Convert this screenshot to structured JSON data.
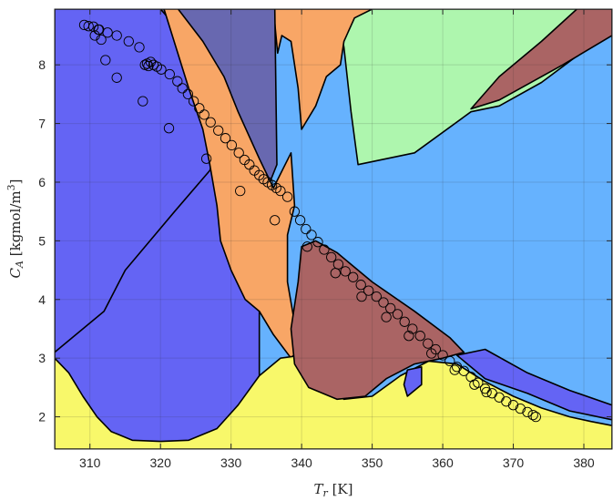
{
  "chart_data": {
    "type": "scatter",
    "title": "",
    "xlabel": {
      "symbol": "T",
      "subscript": "r",
      "unit": "[K]"
    },
    "ylabel": {
      "symbol": "C",
      "subscript": "A",
      "unit": "[kgmol/m",
      "unit_sup": "3",
      "unit_end": "]"
    },
    "xlim": [
      305,
      384
    ],
    "ylim": [
      1.45,
      8.95
    ],
    "xticks": [
      310,
      320,
      330,
      340,
      350,
      360,
      370,
      380
    ],
    "yticks": [
      2,
      3,
      4,
      5,
      6,
      7,
      8
    ],
    "grid": true,
    "colors": {
      "blue_region": "#6464f4",
      "slate_region": "#6868b0",
      "orange_region": "#f8a666",
      "green_region": "#aef6ae",
      "lightblue_region": "#66b2fe",
      "maroon_region": "#aa6464",
      "yellow_region": "#f8f86a",
      "marker_edge": "#000000"
    },
    "regions": [
      {
        "name": "blue",
        "color": "blue_region",
        "points": [
          [
            305,
            1.45
          ],
          [
            305,
            8.95
          ],
          [
            336.5,
            8.95
          ],
          [
            336.5,
            1.45
          ]
        ]
      },
      {
        "name": "lightblue",
        "color": "lightblue_region",
        "points": [
          [
            334,
            8.95
          ],
          [
            384,
            8.95
          ],
          [
            384,
            1.45
          ],
          [
            334,
            1.45
          ]
        ]
      },
      {
        "name": "green",
        "color": "green_region",
        "points": [
          [
            362,
            8.95
          ],
          [
            384,
            8.95
          ],
          [
            384,
            8.6
          ],
          [
            374,
            7.7
          ],
          [
            368,
            7.3
          ],
          [
            364,
            7.2
          ],
          [
            356,
            6.5
          ],
          [
            348,
            6.3
          ],
          [
            347,
            7.2
          ],
          [
            346,
            8.3
          ],
          [
            345,
            8.95
          ]
        ]
      },
      {
        "name": "maroon_top",
        "color": "maroon_region",
        "points": [
          [
            384,
            8.95
          ],
          [
            384,
            8.5
          ],
          [
            377,
            8.0
          ],
          [
            368,
            7.4
          ],
          [
            364,
            7.25
          ],
          [
            368,
            7.8
          ],
          [
            374,
            8.4
          ],
          [
            379,
            8.95
          ]
        ]
      },
      {
        "name": "orange_top",
        "color": "orange_region",
        "points": [
          [
            336,
            8.95
          ],
          [
            350,
            8.95
          ],
          [
            347.5,
            8.8
          ],
          [
            346,
            8.4
          ],
          [
            345.5,
            8.0
          ],
          [
            343.5,
            7.8
          ],
          [
            342,
            7.3
          ],
          [
            340,
            6.9
          ],
          [
            339.5,
            7.6
          ],
          [
            338.5,
            8.4
          ],
          [
            337.2,
            8.5
          ],
          [
            336.6,
            8.2
          ]
        ]
      },
      {
        "name": "slate",
        "color": "slate_region",
        "points": [
          [
            320,
            8.95
          ],
          [
            336.2,
            8.95
          ],
          [
            336.5,
            6.3
          ],
          [
            335.5,
            6.0
          ],
          [
            333,
            6.5
          ],
          [
            330,
            7.3
          ],
          [
            327,
            7.9
          ],
          [
            324,
            8.4
          ]
        ]
      },
      {
        "name": "blue_left_top",
        "color": "blue_region",
        "points": [
          [
            305,
            8.95
          ],
          [
            320,
            8.95
          ],
          [
            324,
            8.4
          ],
          [
            327,
            7.9
          ],
          [
            329,
            7.0
          ],
          [
            327,
            6.2
          ],
          [
            322,
            5.5
          ],
          [
            315,
            4.5
          ],
          [
            312,
            3.8
          ],
          [
            305,
            3.1
          ]
        ]
      },
      {
        "name": "orange_mid",
        "color": "orange_region",
        "points": [
          [
            320.5,
            8.95
          ],
          [
            322.5,
            8.95
          ],
          [
            326,
            8.4
          ],
          [
            329,
            7.8
          ],
          [
            331,
            7.2
          ],
          [
            334,
            6.4
          ],
          [
            336,
            5.9
          ],
          [
            338.5,
            6.5
          ],
          [
            339,
            5.6
          ],
          [
            338,
            5.1
          ],
          [
            338,
            4.3
          ],
          [
            339,
            3.6
          ],
          [
            340,
            3.2
          ],
          [
            338.5,
            3.0
          ],
          [
            336,
            3.4
          ],
          [
            334,
            3.8
          ],
          [
            332,
            4.0
          ],
          [
            330,
            4.5
          ],
          [
            328.5,
            5.0
          ],
          [
            328,
            5.6
          ],
          [
            327,
            6.3
          ],
          [
            326,
            6.9
          ],
          [
            324,
            7.6
          ]
        ]
      },
      {
        "name": "yellow",
        "color": "yellow_region",
        "points": [
          [
            305,
            1.45
          ],
          [
            305,
            3.0
          ],
          [
            307,
            2.75
          ],
          [
            309,
            2.35
          ],
          [
            311,
            2.0
          ],
          [
            313,
            1.75
          ],
          [
            316,
            1.6
          ],
          [
            320,
            1.58
          ],
          [
            324,
            1.6
          ],
          [
            328,
            1.8
          ],
          [
            331,
            2.2
          ],
          [
            334,
            2.7
          ],
          [
            337,
            3.0
          ],
          [
            340,
            3.05
          ],
          [
            341,
            2.8
          ],
          [
            343,
            2.5
          ],
          [
            346,
            2.3
          ],
          [
            350,
            2.35
          ],
          [
            354,
            2.7
          ],
          [
            358,
            2.95
          ],
          [
            362,
            2.9
          ],
          [
            366,
            2.6
          ],
          [
            370,
            2.35
          ],
          [
            374,
            2.15
          ],
          [
            378,
            2.0
          ],
          [
            381,
            1.92
          ],
          [
            384,
            1.85
          ],
          [
            384,
            1.45
          ]
        ]
      },
      {
        "name": "maroon_mid",
        "color": "maroon_region",
        "points": [
          [
            340,
            4.9
          ],
          [
            342,
            5.0
          ],
          [
            345,
            4.8
          ],
          [
            350,
            4.3
          ],
          [
            356,
            3.8
          ],
          [
            361,
            3.35
          ],
          [
            363,
            3.1
          ],
          [
            360,
            3.0
          ],
          [
            356,
            2.9
          ],
          [
            352,
            2.65
          ],
          [
            349,
            2.35
          ],
          [
            345,
            2.3
          ],
          [
            341,
            2.5
          ],
          [
            339,
            2.9
          ],
          [
            338.5,
            3.5
          ],
          [
            339.5,
            4.3
          ]
        ]
      },
      {
        "name": "blue_notch",
        "color": "blue_region",
        "points": [
          [
            355,
            2.8
          ],
          [
            357,
            2.85
          ],
          [
            357,
            2.55
          ],
          [
            355,
            2.35
          ],
          [
            354.5,
            2.55
          ]
        ]
      },
      {
        "name": "blue_strip",
        "color": "blue_region",
        "points": [
          [
            362,
            3.05
          ],
          [
            366,
            3.15
          ],
          [
            372,
            2.75
          ],
          [
            378,
            2.45
          ],
          [
            384,
            2.2
          ],
          [
            384,
            1.95
          ],
          [
            378,
            2.1
          ],
          [
            372,
            2.4
          ],
          [
            366,
            2.65
          ]
        ]
      }
    ],
    "series": [
      {
        "values": [
          [
            309.2,
            8.68
          ],
          [
            309.8,
            8.66
          ],
          [
            310.5,
            8.65
          ],
          [
            311.3,
            8.6
          ],
          [
            312.5,
            8.55
          ],
          [
            313.8,
            8.5
          ],
          [
            315.5,
            8.4
          ],
          [
            317,
            8.3
          ],
          [
            310.7,
            8.5
          ],
          [
            311.2,
            8.6
          ],
          [
            311.6,
            8.43
          ],
          [
            312.2,
            8.08
          ],
          [
            313.8,
            7.78
          ],
          [
            317.5,
            7.38
          ],
          [
            321.2,
            6.92
          ],
          [
            317.8,
            8.0
          ],
          [
            318.1,
            8.02
          ],
          [
            318.3,
            7.98
          ],
          [
            318.6,
            8.05
          ],
          [
            319,
            8.0
          ],
          [
            319.5,
            7.97
          ],
          [
            320.1,
            7.92
          ],
          [
            321.3,
            7.84
          ],
          [
            322.4,
            7.72
          ],
          [
            323.1,
            7.6
          ],
          [
            323.9,
            7.5
          ],
          [
            324.7,
            7.38
          ],
          [
            325.5,
            7.26
          ],
          [
            326.2,
            7.15
          ],
          [
            327.1,
            7.02
          ],
          [
            328.2,
            6.88
          ],
          [
            329.2,
            6.75
          ],
          [
            330.1,
            6.63
          ],
          [
            331.1,
            6.5
          ],
          [
            331.9,
            6.38
          ],
          [
            332.6,
            6.3
          ],
          [
            333.3,
            6.2
          ],
          [
            334,
            6.12
          ],
          [
            334.6,
            6.05
          ],
          [
            335.2,
            6.0
          ],
          [
            335.8,
            5.95
          ],
          [
            336.4,
            5.9
          ],
          [
            337,
            5.85
          ],
          [
            338,
            5.75
          ],
          [
            339,
            5.5
          ],
          [
            339.8,
            5.35
          ],
          [
            340.6,
            5.2
          ],
          [
            341.4,
            5.1
          ],
          [
            342.3,
            4.98
          ],
          [
            343.2,
            4.85
          ],
          [
            344.2,
            4.72
          ],
          [
            345.2,
            4.6
          ],
          [
            346.2,
            4.48
          ],
          [
            347.3,
            4.38
          ],
          [
            348.4,
            4.25
          ],
          [
            349.5,
            4.15
          ],
          [
            350.6,
            4.05
          ],
          [
            351.6,
            3.95
          ],
          [
            352.6,
            3.85
          ],
          [
            353.6,
            3.75
          ],
          [
            354.6,
            3.62
          ],
          [
            355.7,
            3.5
          ],
          [
            356.8,
            3.38
          ],
          [
            357.9,
            3.25
          ],
          [
            359,
            3.15
          ],
          [
            360,
            3.05
          ],
          [
            361,
            2.95
          ],
          [
            362,
            2.85
          ],
          [
            363,
            2.78
          ],
          [
            364,
            2.68
          ],
          [
            365,
            2.58
          ],
          [
            366,
            2.48
          ],
          [
            367,
            2.4
          ],
          [
            368,
            2.33
          ],
          [
            369,
            2.26
          ],
          [
            370,
            2.2
          ],
          [
            371,
            2.14
          ],
          [
            372,
            2.08
          ],
          [
            372.8,
            2.03
          ],
          [
            373.2,
            2.0
          ],
          [
            326.5,
            6.4
          ],
          [
            331.3,
            5.85
          ],
          [
            336.2,
            5.35
          ],
          [
            340.8,
            4.9
          ],
          [
            344.8,
            4.45
          ],
          [
            348.5,
            4.05
          ],
          [
            352,
            3.7
          ],
          [
            355.2,
            3.38
          ],
          [
            358.4,
            3.08
          ],
          [
            361.7,
            2.8
          ],
          [
            364.5,
            2.55
          ],
          [
            366.2,
            2.42
          ]
        ]
      }
    ]
  }
}
